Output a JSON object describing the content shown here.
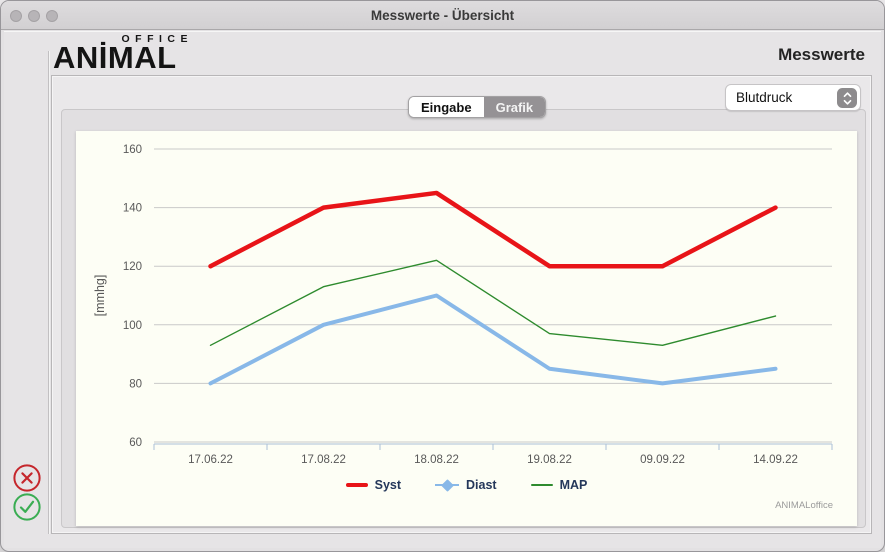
{
  "window": {
    "title": "Messwerte - Übersicht"
  },
  "brand": {
    "line1": "OFFICE",
    "line2": "ANİMAL"
  },
  "page_title": "Messwerte",
  "tabs": {
    "eingabe": "Eingabe",
    "grafik": "Grafik",
    "selected": "Grafik"
  },
  "dropdown": {
    "value": "Blutdruck"
  },
  "chart_data": {
    "type": "line",
    "categories": [
      "17.06.22",
      "17.08.22",
      "18.08.22",
      "19.08.22",
      "09.09.22",
      "14.09.22"
    ],
    "series": [
      {
        "name": "Syst",
        "values": [
          120,
          140,
          145,
          120,
          120,
          140
        ],
        "color": "#e81418",
        "stroke_width": 4.5,
        "marker": "line"
      },
      {
        "name": "Diast",
        "values": [
          80,
          100,
          110,
          85,
          80,
          85
        ],
        "color": "#88b8e8",
        "stroke_width": 4,
        "marker": "diamond"
      },
      {
        "name": "MAP",
        "values": [
          93,
          113,
          122,
          97,
          93,
          103
        ],
        "color": "#2e8b2e",
        "stroke_width": 1.4,
        "marker": "line"
      }
    ],
    "title": "",
    "xlabel": "",
    "ylabel": "[mmhg]",
    "ylim": [
      60,
      160
    ],
    "yticks": [
      60,
      80,
      100,
      120,
      140,
      160
    ],
    "grid": true,
    "legend_position": "bottom"
  },
  "watermark": "ANIMALoffice",
  "colors": {
    "cancel": "#c5262c",
    "confirm": "#3aad53",
    "grid": "#c9c9c9",
    "axis": "#abc0d8",
    "tick_text": "#595959"
  }
}
